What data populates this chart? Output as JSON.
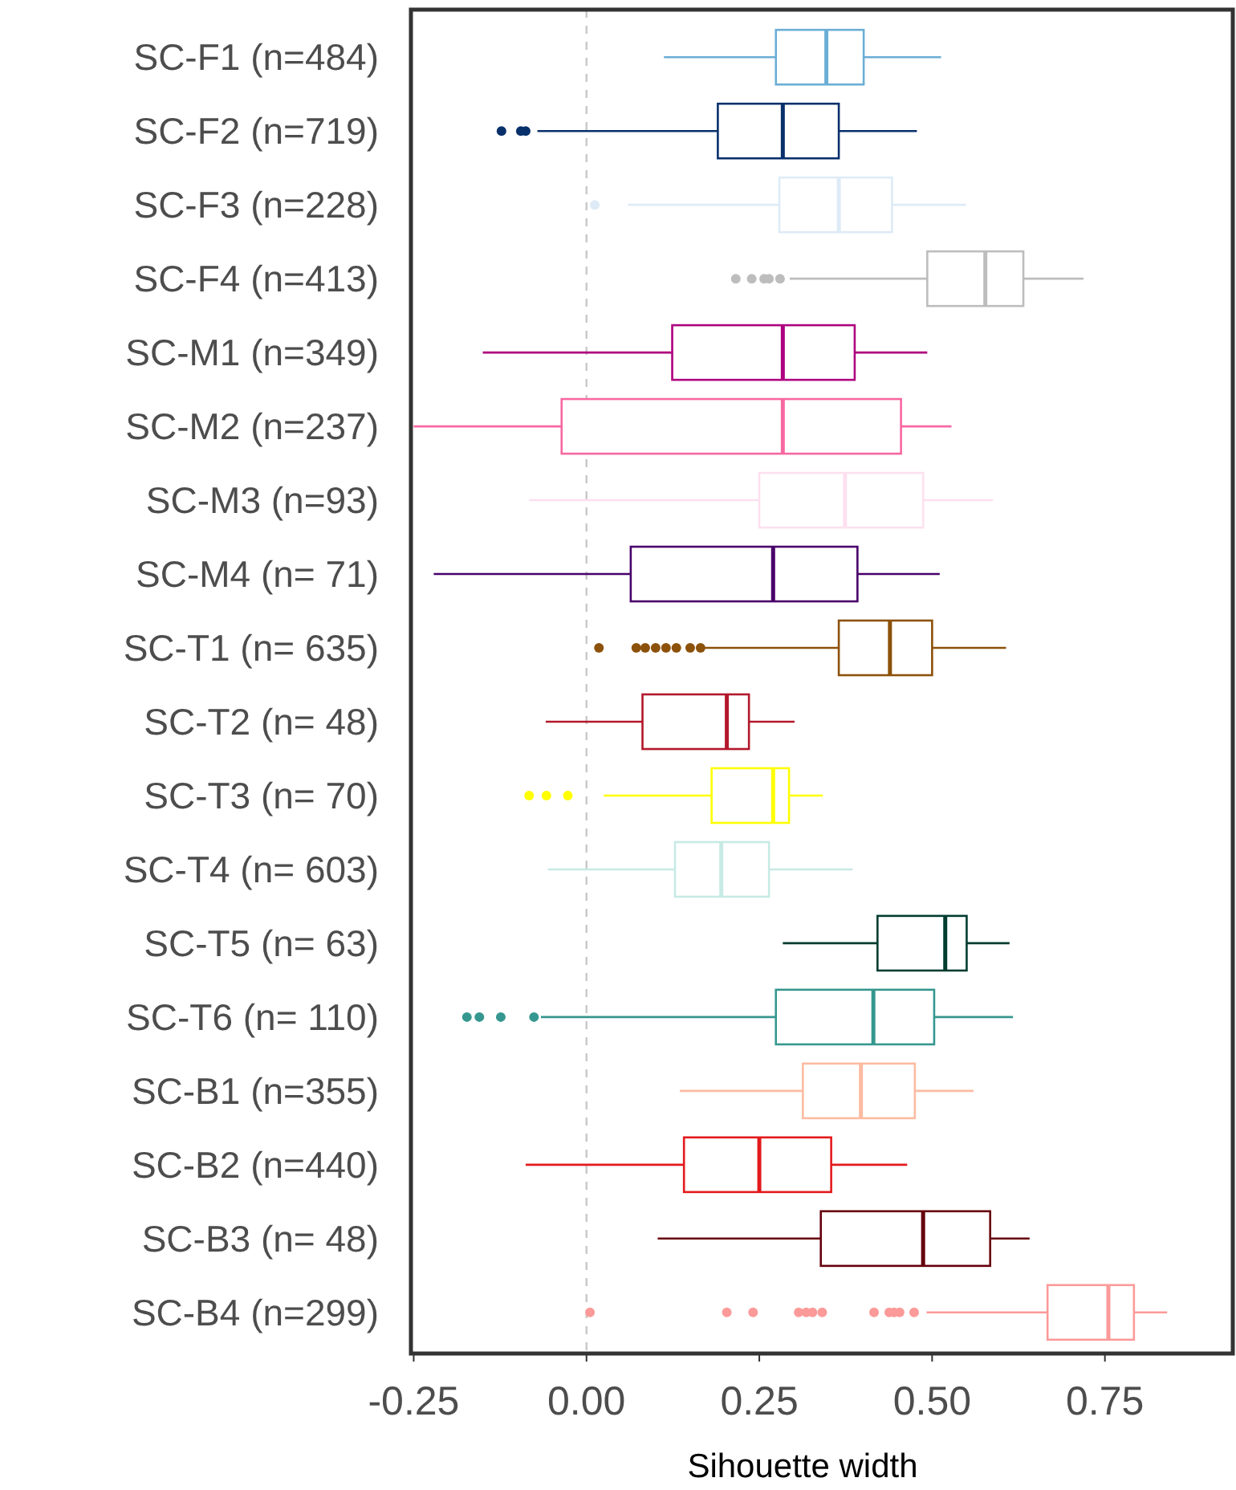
{
  "chart_data": {
    "type": "box",
    "orientation": "horizontal",
    "xlabel": "Sihouette width",
    "categories": [
      "SC-F1 (n=484)",
      "SC-F2 (n=719)",
      "SC-F3 (n=228)",
      "SC-F4 (n=413)",
      "SC-M1 (n=349)",
      "SC-M2 (n=237)",
      "SC-M3 (n=93)",
      "SC-M4 (n= 71)",
      "SC-T1 (n= 635)",
      "SC-T2 (n= 48)",
      "SC-T3 (n= 70)",
      "SC-T4 (n= 603)",
      "SC-T5 (n= 63)",
      "SC-T6 (n= 110)",
      "SC-B1 (n=355)",
      "SC-B2 (n=440)",
      "SC-B3 (n= 48)",
      "SC-B4 (n=299)"
    ],
    "colors": [
      "#6baed6",
      "#08306b",
      "#deebf7",
      "#bdbdbd",
      "#ae017e",
      "#f768a1",
      "#fde0ef",
      "#49006a",
      "#8c510a",
      "#b2182b",
      "#ffff00",
      "#c7eae5",
      "#003c30",
      "#35978f",
      "#fcbba1",
      "#e31a1c",
      "#67000d",
      "#fb9a99"
    ],
    "boxes": [
      {
        "low": 0.112,
        "q1": 0.274,
        "median": 0.347,
        "q3": 0.401,
        "high": 0.513
      },
      {
        "low": -0.071,
        "q1": 0.19,
        "median": 0.284,
        "q3": 0.365,
        "high": 0.478,
        "outliers": [
          -0.123,
          -0.095,
          -0.088
        ]
      },
      {
        "low": 0.06,
        "q1": 0.279,
        "median": 0.365,
        "q3": 0.442,
        "high": 0.549,
        "outliers": [
          0.012
        ]
      },
      {
        "low": 0.294,
        "q1": 0.493,
        "median": 0.577,
        "q3": 0.632,
        "high": 0.719,
        "outliers": [
          0.216,
          0.239,
          0.257,
          0.264,
          0.28
        ]
      },
      {
        "low": -0.15,
        "q1": 0.124,
        "median": 0.284,
        "q3": 0.388,
        "high": 0.493
      },
      {
        "low": -0.25,
        "q1": -0.036,
        "median": 0.284,
        "q3": 0.455,
        "high": 0.528
      },
      {
        "low": -0.083,
        "q1": 0.25,
        "median": 0.374,
        "q3": 0.487,
        "high": 0.588
      },
      {
        "low": -0.221,
        "q1": 0.064,
        "median": 0.27,
        "q3": 0.392,
        "high": 0.511
      },
      {
        "low": 0.168,
        "q1": 0.365,
        "median": 0.439,
        "q3": 0.5,
        "high": 0.607,
        "outliers": [
          0.018,
          0.072,
          0.085,
          0.1,
          0.115,
          0.13,
          0.15,
          0.165
        ]
      },
      {
        "low": -0.059,
        "q1": 0.081,
        "median": 0.203,
        "q3": 0.235,
        "high": 0.301
      },
      {
        "low": 0.025,
        "q1": 0.181,
        "median": 0.27,
        "q3": 0.293,
        "high": 0.342,
        "outliers": [
          -0.083,
          -0.058,
          -0.027
        ]
      },
      {
        "low": -0.056,
        "q1": 0.128,
        "median": 0.195,
        "q3": 0.264,
        "high": 0.385
      },
      {
        "low": 0.284,
        "q1": 0.421,
        "median": 0.519,
        "q3": 0.55,
        "high": 0.612
      },
      {
        "low": -0.066,
        "q1": 0.274,
        "median": 0.415,
        "q3": 0.503,
        "high": 0.617,
        "outliers": [
          -0.173,
          -0.155,
          -0.124,
          -0.076
        ]
      },
      {
        "low": 0.135,
        "q1": 0.313,
        "median": 0.397,
        "q3": 0.475,
        "high": 0.56
      },
      {
        "low": -0.088,
        "q1": 0.141,
        "median": 0.25,
        "q3": 0.354,
        "high": 0.464
      },
      {
        "low": 0.103,
        "q1": 0.339,
        "median": 0.487,
        "q3": 0.584,
        "high": 0.641
      },
      {
        "low": 0.492,
        "q1": 0.667,
        "median": 0.755,
        "q3": 0.792,
        "high": 0.84,
        "outliers": [
          0.005,
          0.203,
          0.241,
          0.307,
          0.318,
          0.327,
          0.341,
          0.416,
          0.438,
          0.445,
          0.453,
          0.474
        ]
      }
    ],
    "xlim": [
      -0.254,
      0.935
    ],
    "xticks": [
      {
        "value": -0.25,
        "label": "-0.25"
      },
      {
        "value": 0,
        "label": "0.00"
      },
      {
        "value": 0.25,
        "label": "0.25"
      },
      {
        "value": 0.5,
        "label": "0.50"
      },
      {
        "value": 0.75,
        "label": "0.75"
      }
    ],
    "ref_lines": [
      {
        "axis": "x",
        "value": 0,
        "color": "#c8c8c8",
        "line_style": "dashed"
      }
    ],
    "grid": false
  }
}
